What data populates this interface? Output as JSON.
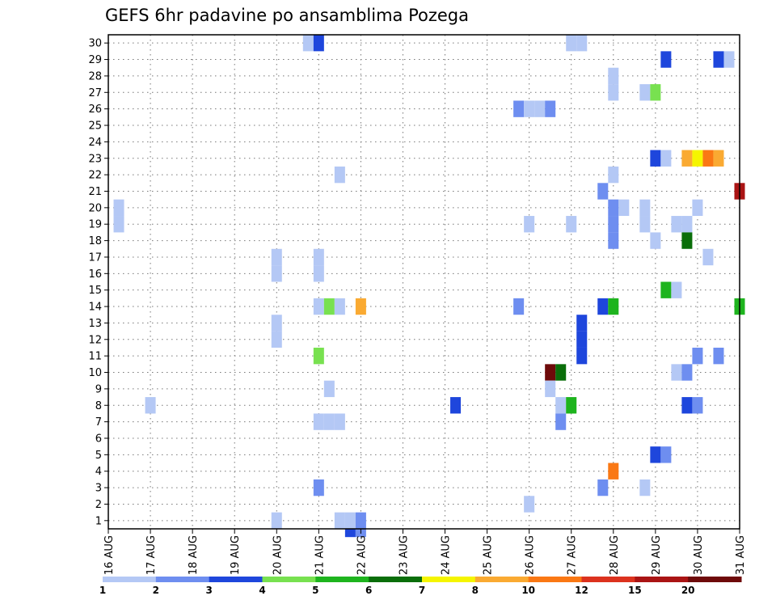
{
  "chart_data": {
    "type": "heatmap",
    "title": "GEFS 6hr padavine po ansamblima Pozega",
    "xlabel": "",
    "ylabel": "",
    "x_ticks": [
      "16 AUG",
      "17 AUG",
      "18 AUG",
      "19 AUG",
      "20 AUG",
      "21 AUG",
      "22 AUG",
      "23 AUG",
      "24 AUG",
      "25 AUG",
      "26 AUG",
      "27 AUG",
      "28 AUG",
      "29 AUG",
      "30 AUG",
      "31 AUG"
    ],
    "xlim": [
      0,
      60
    ],
    "ylim": [
      0.5,
      30.5
    ],
    "y_ticks": [
      1,
      2,
      3,
      4,
      5,
      6,
      7,
      8,
      9,
      10,
      11,
      12,
      13,
      14,
      15,
      16,
      17,
      18,
      19,
      20,
      21,
      22,
      23,
      24,
      25,
      26,
      27,
      28,
      29,
      30
    ],
    "grid": true,
    "colorbar": {
      "levels": [
        "1",
        "2",
        "3",
        "4",
        "5",
        "6",
        "7",
        "8",
        "10",
        "12",
        "15",
        "20"
      ],
      "colors": [
        "#b4c8f5",
        "#6e8ef0",
        "#1e46dc",
        "#78e150",
        "#1eb41e",
        "#0a6e0a",
        "#f5f500",
        "#faaa32",
        "#fa7814",
        "#dc321e",
        "#aa1414",
        "#6e0a0a"
      ]
    },
    "cells": [
      [
        19.0,
        30,
        "#b4c8f5"
      ],
      [
        20.0,
        30,
        "#1e46dc"
      ],
      [
        44.0,
        30,
        "#b4c8f5"
      ],
      [
        45.0,
        30,
        "#b4c8f5"
      ],
      [
        53.0,
        29,
        "#1e46dc"
      ],
      [
        58.0,
        29,
        "#1e46dc"
      ],
      [
        59.0,
        29,
        "#b4c8f5"
      ],
      [
        48.0,
        28,
        "#b4c8f5"
      ],
      [
        48.0,
        27,
        "#b4c8f5"
      ],
      [
        51.0,
        27,
        "#b4c8f5"
      ],
      [
        52.0,
        27,
        "#78e150"
      ],
      [
        39.0,
        26,
        "#6e8ef0"
      ],
      [
        40.0,
        26,
        "#b4c8f5"
      ],
      [
        41.0,
        26,
        "#b4c8f5"
      ],
      [
        42.0,
        26,
        "#6e8ef0"
      ],
      [
        52.0,
        23,
        "#1e46dc"
      ],
      [
        53.0,
        23,
        "#b4c8f5"
      ],
      [
        55.0,
        23,
        "#faaa32"
      ],
      [
        56.0,
        23,
        "#f5f500"
      ],
      [
        57.0,
        23,
        "#fa7814"
      ],
      [
        58.0,
        23,
        "#faaa32"
      ],
      [
        22.0,
        22,
        "#b4c8f5"
      ],
      [
        48.0,
        22,
        "#b4c8f5"
      ],
      [
        47.0,
        21,
        "#6e8ef0"
      ],
      [
        60.0,
        21,
        "#aa1414"
      ],
      [
        1.0,
        20,
        "#b4c8f5"
      ],
      [
        48.0,
        20,
        "#6e8ef0"
      ],
      [
        49.0,
        20,
        "#b4c8f5"
      ],
      [
        51.0,
        20,
        "#b4c8f5"
      ],
      [
        56.0,
        20,
        "#b4c8f5"
      ],
      [
        1.0,
        19,
        "#b4c8f5"
      ],
      [
        40.0,
        19,
        "#b4c8f5"
      ],
      [
        44.0,
        19,
        "#b4c8f5"
      ],
      [
        48.0,
        19,
        "#6e8ef0"
      ],
      [
        51.0,
        19,
        "#b4c8f5"
      ],
      [
        54.0,
        19,
        "#b4c8f5"
      ],
      [
        55.0,
        19,
        "#b4c8f5"
      ],
      [
        48.0,
        18,
        "#6e8ef0"
      ],
      [
        52.0,
        18,
        "#b4c8f5"
      ],
      [
        55.0,
        18,
        "#0a6e0a"
      ],
      [
        16.0,
        17,
        "#b4c8f5"
      ],
      [
        20.0,
        17,
        "#b4c8f5"
      ],
      [
        57.0,
        17,
        "#b4c8f5"
      ],
      [
        16.0,
        16,
        "#b4c8f5"
      ],
      [
        20.0,
        16,
        "#b4c8f5"
      ],
      [
        53.0,
        15,
        "#1eb41e"
      ],
      [
        54.0,
        15,
        "#b4c8f5"
      ],
      [
        20.0,
        14,
        "#b4c8f5"
      ],
      [
        21.0,
        14,
        "#78e150"
      ],
      [
        22.0,
        14,
        "#b4c8f5"
      ],
      [
        24.0,
        14,
        "#faaa32"
      ],
      [
        39.0,
        14,
        "#6e8ef0"
      ],
      [
        47.0,
        14,
        "#1e46dc"
      ],
      [
        48.0,
        14,
        "#1eb41e"
      ],
      [
        60.0,
        14,
        "#1eb41e"
      ],
      [
        16.0,
        13,
        "#b4c8f5"
      ],
      [
        45.0,
        13,
        "#1e46dc"
      ],
      [
        16.0,
        12,
        "#b4c8f5"
      ],
      [
        45.0,
        12,
        "#1e46dc"
      ],
      [
        20.0,
        11,
        "#78e150"
      ],
      [
        45.0,
        11,
        "#1e46dc"
      ],
      [
        56.0,
        11,
        "#6e8ef0"
      ],
      [
        58.0,
        11,
        "#6e8ef0"
      ],
      [
        42.0,
        10,
        "#6e0a0a"
      ],
      [
        43.0,
        10,
        "#0a6e0a"
      ],
      [
        54.0,
        10,
        "#b4c8f5"
      ],
      [
        55.0,
        10,
        "#6e8ef0"
      ],
      [
        21.0,
        9,
        "#b4c8f5"
      ],
      [
        42.0,
        9,
        "#b4c8f5"
      ],
      [
        4.0,
        8,
        "#b4c8f5"
      ],
      [
        33.0,
        8,
        "#1e46dc"
      ],
      [
        43.0,
        8,
        "#b4c8f5"
      ],
      [
        44.0,
        8,
        "#1eb41e"
      ],
      [
        55.0,
        8,
        "#1e46dc"
      ],
      [
        56.0,
        8,
        "#6e8ef0"
      ],
      [
        20.0,
        7,
        "#b4c8f5"
      ],
      [
        21.0,
        7,
        "#b4c8f5"
      ],
      [
        22.0,
        7,
        "#b4c8f5"
      ],
      [
        43.0,
        7,
        "#6e8ef0"
      ],
      [
        52.0,
        5,
        "#1e46dc"
      ],
      [
        53.0,
        5,
        "#6e8ef0"
      ],
      [
        48.0,
        4,
        "#fa7814"
      ],
      [
        20.0,
        3,
        "#6e8ef0"
      ],
      [
        47.0,
        3,
        "#6e8ef0"
      ],
      [
        51.0,
        3,
        "#b4c8f5"
      ],
      [
        40.0,
        2,
        "#b4c8f5"
      ],
      [
        16.0,
        1,
        "#b4c8f5"
      ],
      [
        22.0,
        1,
        "#b4c8f5"
      ],
      [
        23.0,
        1,
        "#b4c8f5"
      ],
      [
        24.0,
        1,
        "#6e8ef0"
      ],
      [
        23.0,
        0.5,
        "#1e46dc"
      ],
      [
        24.0,
        0.5,
        "#6e8ef0"
      ]
    ]
  }
}
